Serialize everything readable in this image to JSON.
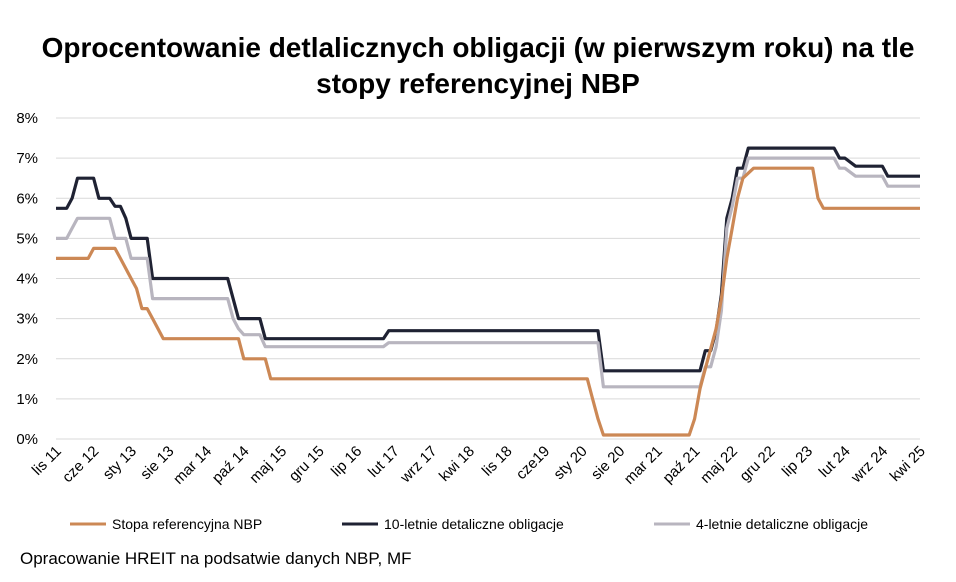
{
  "title_line1": "Oprocentowanie detlalicznych obligacji (w pierwszym roku) na tle",
  "title_line2": "stopy referencyjnej NBP",
  "source": "Opracowanie HREIT na podsatwie danych NBP, MF",
  "chart_data": {
    "type": "line",
    "title": "Oprocentowanie detlalicznych obligacji (w pierwszym roku) na tle stopy referencyjnej NBP",
    "ylim": [
      0,
      8
    ],
    "yticks": [
      "0%",
      "1%",
      "2%",
      "3%",
      "4%",
      "5%",
      "6%",
      "7%",
      "8%"
    ],
    "xticks": [
      "lis 11",
      "cze 12",
      "sty 13",
      "sie 13",
      "mar 14",
      "paź 14",
      "maj 15",
      "gru 15",
      "lip 16",
      "lut 17",
      "wrz 17",
      "kwi 18",
      "lis 18",
      "cze19",
      "sty 20",
      "sie 20",
      "mar 21",
      "paź 21",
      "maj 22",
      "gru 22",
      "lip 23",
      "lut 24",
      "wrz 24",
      "kwi 25"
    ],
    "xrange": [
      "2011-11",
      "2025-04"
    ],
    "grid": true,
    "legend_position": "bottom",
    "series": [
      {
        "name": "Stopa referencyjna NBP",
        "color": "#CC8855",
        "points": [
          [
            "2011-11",
            4.5
          ],
          [
            "2012-05",
            4.5
          ],
          [
            "2012-06",
            4.75
          ],
          [
            "2012-10",
            4.75
          ],
          [
            "2012-11",
            4.5
          ],
          [
            "2012-12",
            4.25
          ],
          [
            "2013-01",
            4.0
          ],
          [
            "2013-02",
            3.75
          ],
          [
            "2013-03",
            3.25
          ],
          [
            "2013-04",
            3.25
          ],
          [
            "2013-05",
            3.0
          ],
          [
            "2013-06",
            2.75
          ],
          [
            "2013-07",
            2.5
          ],
          [
            "2014-09",
            2.5
          ],
          [
            "2014-10",
            2.0
          ],
          [
            "2015-02",
            2.0
          ],
          [
            "2015-03",
            1.5
          ],
          [
            "2020-02",
            1.5
          ],
          [
            "2020-03",
            1.0
          ],
          [
            "2020-04",
            0.5
          ],
          [
            "2020-05",
            0.1
          ],
          [
            "2021-09",
            0.1
          ],
          [
            "2021-10",
            0.5
          ],
          [
            "2021-11",
            1.25
          ],
          [
            "2021-12",
            1.75
          ],
          [
            "2022-01",
            2.25
          ],
          [
            "2022-02",
            2.75
          ],
          [
            "2022-03",
            3.5
          ],
          [
            "2022-04",
            4.5
          ],
          [
            "2022-05",
            5.25
          ],
          [
            "2022-06",
            6.0
          ],
          [
            "2022-07",
            6.5
          ],
          [
            "2022-09",
            6.75
          ],
          [
            "2023-08",
            6.75
          ],
          [
            "2023-09",
            6.0
          ],
          [
            "2023-10",
            5.75
          ],
          [
            "2025-04",
            5.75
          ]
        ]
      },
      {
        "name": "10-letnie detaliczne obligacje",
        "color": "#1F2233",
        "points": [
          [
            "2011-11",
            5.75
          ],
          [
            "2012-01",
            5.75
          ],
          [
            "2012-02",
            6.0
          ],
          [
            "2012-03",
            6.5
          ],
          [
            "2012-06",
            6.5
          ],
          [
            "2012-07",
            6.0
          ],
          [
            "2012-09",
            6.0
          ],
          [
            "2012-10",
            5.8
          ],
          [
            "2012-11",
            5.8
          ],
          [
            "2012-12",
            5.5
          ],
          [
            "2013-01",
            5.0
          ],
          [
            "2013-04",
            5.0
          ],
          [
            "2013-05",
            4.0
          ],
          [
            "2014-07",
            4.0
          ],
          [
            "2014-08",
            3.5
          ],
          [
            "2014-09",
            3.0
          ],
          [
            "2015-01",
            3.0
          ],
          [
            "2015-02",
            2.5
          ],
          [
            "2016-12",
            2.5
          ],
          [
            "2017-01",
            2.7
          ],
          [
            "2020-04",
            2.7
          ],
          [
            "2020-05",
            1.7
          ],
          [
            "2021-11",
            1.7
          ],
          [
            "2021-12",
            2.2
          ],
          [
            "2022-01",
            2.2
          ],
          [
            "2022-02",
            2.7
          ],
          [
            "2022-03",
            3.6
          ],
          [
            "2022-04",
            5.5
          ],
          [
            "2022-05",
            6.0
          ],
          [
            "2022-06",
            6.75
          ],
          [
            "2022-07",
            6.75
          ],
          [
            "2022-08",
            7.25
          ],
          [
            "2023-12",
            7.25
          ],
          [
            "2024-01",
            7.0
          ],
          [
            "2024-02",
            7.0
          ],
          [
            "2024-04",
            6.8
          ],
          [
            "2024-09",
            6.8
          ],
          [
            "2024-10",
            6.55
          ],
          [
            "2025-04",
            6.55
          ]
        ]
      },
      {
        "name": "4-letnie detaliczne obligacje",
        "color": "#B8B5BF",
        "points": [
          [
            "2011-11",
            5.0
          ],
          [
            "2012-01",
            5.0
          ],
          [
            "2012-02",
            5.25
          ],
          [
            "2012-03",
            5.5
          ],
          [
            "2012-09",
            5.5
          ],
          [
            "2012-10",
            5.0
          ],
          [
            "2012-12",
            5.0
          ],
          [
            "2013-01",
            4.5
          ],
          [
            "2013-04",
            4.5
          ],
          [
            "2013-05",
            3.5
          ],
          [
            "2014-07",
            3.5
          ],
          [
            "2014-08",
            3.0
          ],
          [
            "2014-09",
            2.75
          ],
          [
            "2014-10",
            2.6
          ],
          [
            "2015-01",
            2.6
          ],
          [
            "2015-02",
            2.3
          ],
          [
            "2016-12",
            2.3
          ],
          [
            "2017-01",
            2.4
          ],
          [
            "2020-04",
            2.4
          ],
          [
            "2020-05",
            1.3
          ],
          [
            "2021-11",
            1.3
          ],
          [
            "2021-12",
            1.8
          ],
          [
            "2022-01",
            1.8
          ],
          [
            "2022-02",
            2.3
          ],
          [
            "2022-03",
            3.2
          ],
          [
            "2022-04",
            5.25
          ],
          [
            "2022-05",
            5.8
          ],
          [
            "2022-06",
            6.5
          ],
          [
            "2022-07",
            6.5
          ],
          [
            "2022-08",
            7.0
          ],
          [
            "2023-12",
            7.0
          ],
          [
            "2024-01",
            6.75
          ],
          [
            "2024-02",
            6.75
          ],
          [
            "2024-04",
            6.55
          ],
          [
            "2024-09",
            6.55
          ],
          [
            "2024-10",
            6.3
          ],
          [
            "2025-04",
            6.3
          ]
        ]
      }
    ]
  }
}
